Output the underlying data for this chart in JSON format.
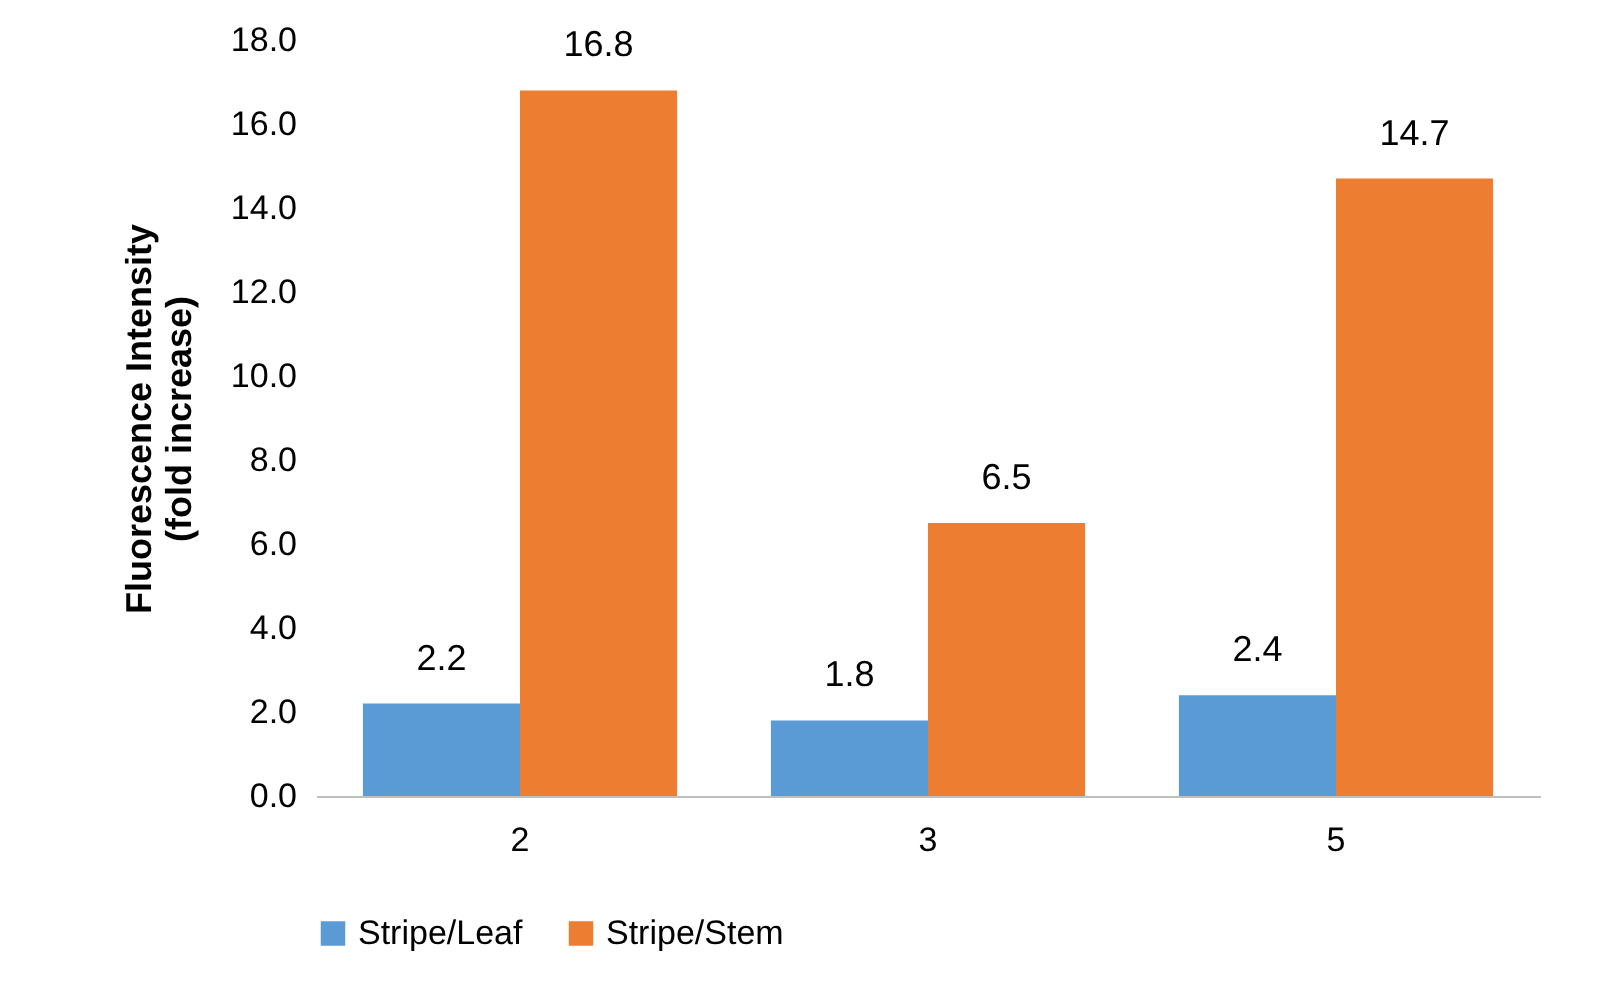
{
  "chart_data": {
    "type": "bar",
    "ylabel": "Fluorescence Intensity\n(fold increase)",
    "categories": [
      "2",
      "3",
      "5"
    ],
    "series": [
      {
        "name": "Stripe/Leaf",
        "color": "#5b9bd5",
        "values": [
          2.2,
          1.8,
          2.4
        ]
      },
      {
        "name": "Stripe/Stem",
        "color": "#ed7d31",
        "values": [
          16.8,
          6.5,
          14.7
        ]
      }
    ],
    "ylim": [
      0,
      18
    ],
    "yticks": [
      {
        "value": 0,
        "label": "0.0"
      },
      {
        "value": 2,
        "label": "2.0"
      },
      {
        "value": 4,
        "label": "4.0"
      },
      {
        "value": 6,
        "label": "6.0"
      },
      {
        "value": 8,
        "label": "8.0"
      },
      {
        "value": 10,
        "label": "10.0"
      },
      {
        "value": 12,
        "label": "12.0"
      },
      {
        "value": 14,
        "label": "14.0"
      },
      {
        "value": 16,
        "label": "16.0"
      },
      {
        "value": 18,
        "label": "18.0"
      }
    ],
    "data_labels": true,
    "grid": false,
    "legend": "bottom"
  }
}
